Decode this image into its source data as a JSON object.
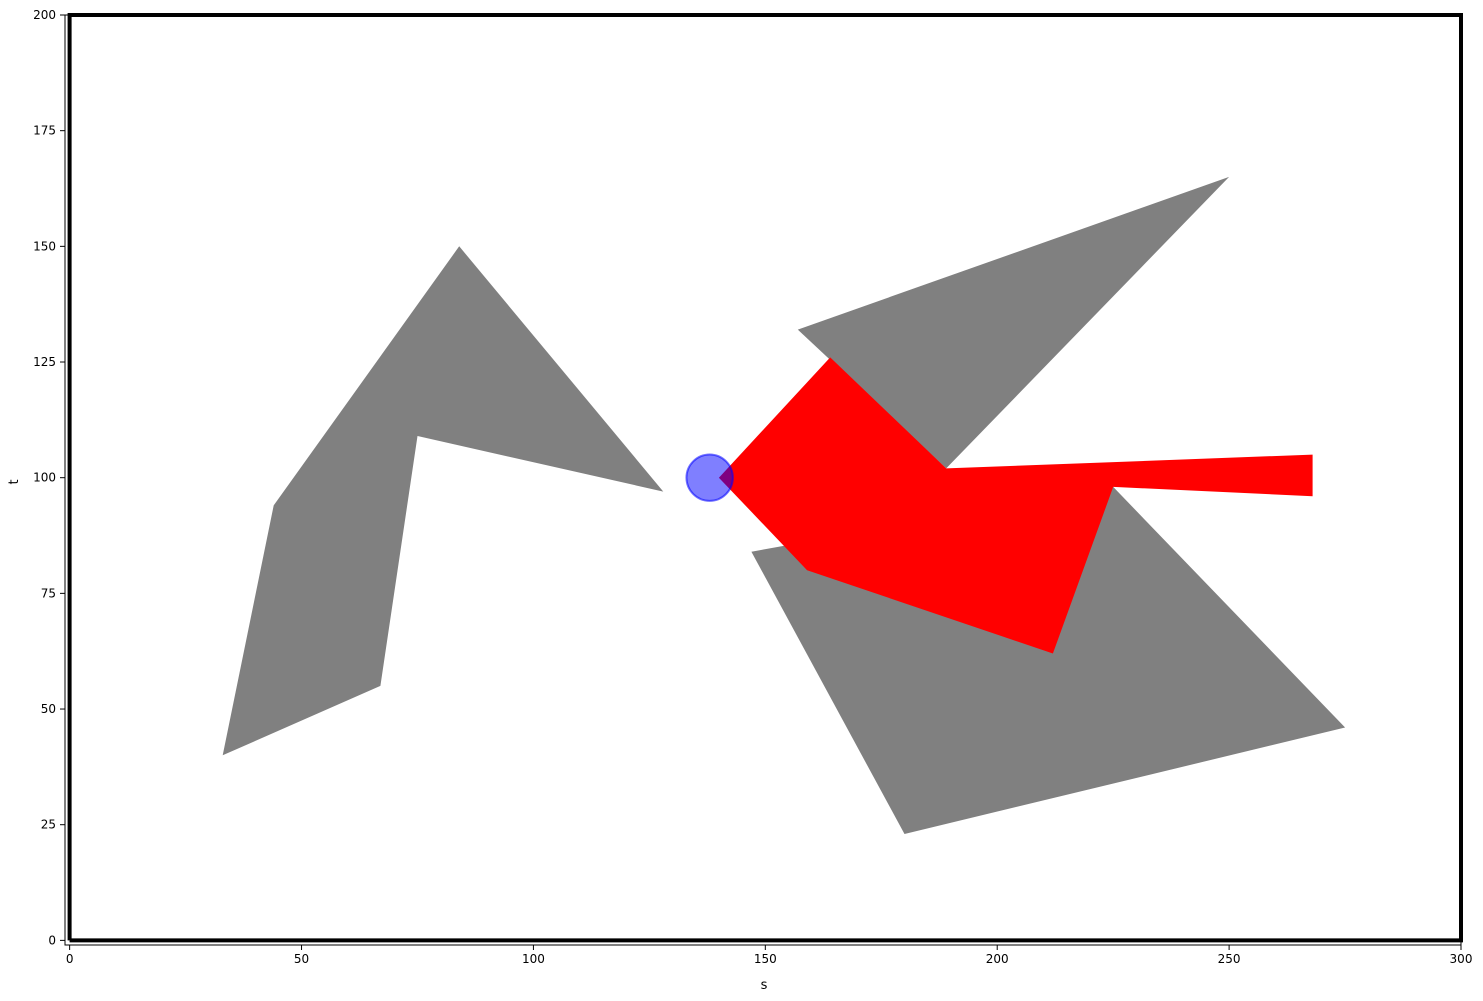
{
  "chart_data": {
    "type": "scatter",
    "title": "",
    "xlabel": "s",
    "ylabel": "t",
    "xlim": [
      -1,
      300
    ],
    "ylim": [
      -1,
      200
    ],
    "xticks": [
      0,
      50,
      100,
      150,
      200,
      250,
      300
    ],
    "yticks": [
      0,
      25,
      50,
      75,
      100,
      125,
      150,
      175,
      200
    ],
    "xtick_labels": [
      "0",
      "50",
      "100",
      "150",
      "200",
      "250",
      "300"
    ],
    "ytick_labels": [
      "0",
      "25",
      "50",
      "75",
      "100",
      "125",
      "150",
      "175",
      "200"
    ],
    "grid": false,
    "boundary": {
      "color": "#000000",
      "points": [
        [
          0,
          0
        ],
        [
          300,
          0
        ],
        [
          300,
          200
        ],
        [
          0,
          200
        ],
        [
          0,
          0
        ]
      ]
    },
    "obstacles": [
      {
        "color": "#808080",
        "points": [
          [
            33,
            40
          ],
          [
            44,
            94
          ],
          [
            84,
            150
          ],
          [
            128,
            97
          ],
          [
            75,
            109
          ],
          [
            67,
            55
          ]
        ]
      },
      {
        "color": "#808080",
        "points": [
          [
            157,
            132
          ],
          [
            250,
            165
          ],
          [
            189,
            102
          ]
        ]
      },
      {
        "color": "#808080",
        "points": [
          [
            147,
            84
          ],
          [
            180,
            23
          ],
          [
            275,
            46
          ],
          [
            225,
            98
          ]
        ]
      }
    ],
    "sensor_region": {
      "color": "#ff0000",
      "points": [
        [
          140,
          100
        ],
        [
          164,
          126
        ],
        [
          189,
          102
        ],
        [
          268,
          105
        ],
        [
          268,
          96
        ],
        [
          225,
          98
        ],
        [
          212,
          62
        ],
        [
          159,
          80
        ]
      ]
    },
    "robot": {
      "color": "#0000ff",
      "center": [
        138,
        100
      ],
      "radius": 5
    }
  }
}
